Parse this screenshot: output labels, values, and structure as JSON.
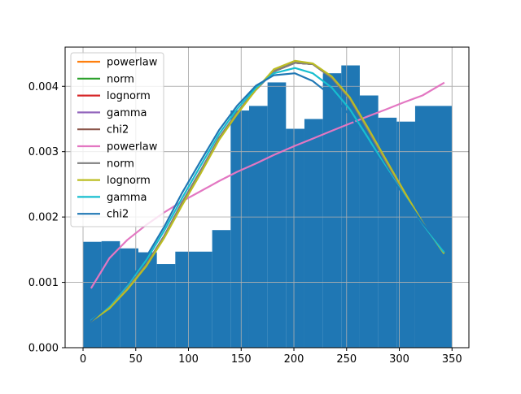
{
  "chart_data": {
    "type": "bar",
    "title": "",
    "xlabel": "",
    "ylabel": "",
    "xlim": [
      -17,
      366
    ],
    "ylim": [
      0,
      0.0046
    ],
    "grid": true,
    "legend_position": "upper-left",
    "xticks": [
      0,
      50,
      100,
      150,
      200,
      250,
      300,
      350
    ],
    "xtick_labels": [
      "0",
      "50",
      "100",
      "150",
      "200",
      "250",
      "300",
      "350"
    ],
    "yticks": [
      0,
      0.001,
      0.002,
      0.003,
      0.004
    ],
    "ytick_labels": [
      "0.000",
      "0.001",
      "0.002",
      "0.003",
      "0.004"
    ],
    "histogram": {
      "color": "#1f77b4",
      "bins": [
        {
          "x0": 0,
          "x1": 17.5,
          "height": 0.00162
        },
        {
          "x0": 17.5,
          "x1": 35,
          "height": 0.00163
        },
        {
          "x0": 35,
          "x1": 52.5,
          "height": 0.00152
        },
        {
          "x0": 52.5,
          "x1": 70,
          "height": 0.00146
        },
        {
          "x0": 70,
          "x1": 87.5,
          "height": 0.00128
        },
        {
          "x0": 87.5,
          "x1": 105,
          "height": 0.00147
        },
        {
          "x0": 105,
          "x1": 122.5,
          "height": 0.00147
        },
        {
          "x0": 122.5,
          "x1": 140,
          "height": 0.0018
        },
        {
          "x0": 140,
          "x1": 157.5,
          "height": 0.00363
        },
        {
          "x0": 157.5,
          "x1": 175,
          "height": 0.0037
        },
        {
          "x0": 175,
          "x1": 192.5,
          "height": 0.00406
        },
        {
          "x0": 192.5,
          "x1": 210,
          "height": 0.00335
        },
        {
          "x0": 210,
          "x1": 227.5,
          "height": 0.0035
        },
        {
          "x0": 227.5,
          "x1": 245,
          "height": 0.0042
        },
        {
          "x0": 245,
          "x1": 262.5,
          "height": 0.00432
        },
        {
          "x0": 262.5,
          "x1": 280,
          "height": 0.00386
        },
        {
          "x0": 280,
          "x1": 297.5,
          "height": 0.00352
        },
        {
          "x0": 297.5,
          "x1": 315,
          "height": 0.00346
        },
        {
          "x0": 315,
          "x1": 350,
          "height": 0.0037
        }
      ]
    },
    "series": [
      {
        "name": "powerlaw",
        "color": "#ff7f0e",
        "x": [
          8,
          25,
          42,
          60,
          77,
          94,
          112,
          129,
          146,
          164,
          181,
          201,
          218,
          236,
          253,
          270,
          288,
          305,
          322,
          342
        ],
        "y": [
          0.00041,
          0.00061,
          0.00091,
          0.00127,
          0.00171,
          0.00222,
          0.00272,
          0.00321,
          0.00359,
          0.00395,
          0.00423,
          0.00436,
          0.00434,
          0.00413,
          0.00381,
          0.00334,
          0.00283,
          0.00237,
          0.00191,
          0.00146
        ]
      },
      {
        "name": "norm",
        "color": "#2ca02c",
        "x": [
          8,
          25,
          42,
          60,
          77,
          94,
          112,
          129,
          146,
          164,
          181,
          201,
          218,
          236,
          253,
          270,
          288,
          305,
          322,
          342
        ],
        "y": [
          0.00041,
          0.00061,
          0.00091,
          0.00127,
          0.00171,
          0.00222,
          0.00272,
          0.00321,
          0.00359,
          0.00395,
          0.00423,
          0.00436,
          0.00434,
          0.00413,
          0.00381,
          0.00334,
          0.00283,
          0.00237,
          0.00191,
          0.00146
        ]
      },
      {
        "name": "lognorm",
        "color": "#d62728",
        "x": [
          8,
          25,
          42,
          60,
          77,
          94,
          112,
          129,
          146,
          164,
          181,
          201,
          218,
          236,
          253,
          270,
          288,
          305,
          322,
          342
        ],
        "y": [
          0.00041,
          0.00061,
          0.00091,
          0.00127,
          0.00171,
          0.00222,
          0.00272,
          0.00321,
          0.00359,
          0.00395,
          0.00423,
          0.00436,
          0.00434,
          0.00413,
          0.00381,
          0.00334,
          0.00283,
          0.00237,
          0.00191,
          0.00146
        ]
      },
      {
        "name": "gamma",
        "color": "#9467bd",
        "x": [
          8,
          25,
          42,
          60,
          77,
          94,
          112,
          129,
          146,
          164,
          181,
          201,
          218,
          236,
          253,
          270,
          288,
          305,
          322,
          342
        ],
        "y": [
          0.00041,
          0.00061,
          0.00091,
          0.00127,
          0.00171,
          0.00222,
          0.00272,
          0.00321,
          0.00359,
          0.00395,
          0.00423,
          0.00436,
          0.00434,
          0.00413,
          0.00381,
          0.00334,
          0.00283,
          0.00237,
          0.00191,
          0.00146
        ]
      },
      {
        "name": "chi2",
        "color": "#8c564b",
        "x": [
          8,
          25,
          42,
          60,
          77,
          94,
          112,
          129,
          146,
          164,
          181,
          201,
          218,
          236,
          253,
          270,
          288,
          305,
          322,
          342
        ],
        "y": [
          0.00041,
          0.00061,
          0.00091,
          0.00127,
          0.00171,
          0.00222,
          0.00272,
          0.00321,
          0.00359,
          0.00395,
          0.00423,
          0.00436,
          0.00434,
          0.00413,
          0.00381,
          0.00334,
          0.00283,
          0.00237,
          0.00191,
          0.00146
        ]
      },
      {
        "name": "powerlaw",
        "color": "#e377c2",
        "x": [
          8,
          25,
          42,
          60,
          77,
          94,
          112,
          129,
          146,
          164,
          181,
          201,
          218,
          236,
          253,
          270,
          288,
          305,
          322,
          342
        ],
        "y": [
          0.00092,
          0.00137,
          0.00165,
          0.00188,
          0.00207,
          0.00224,
          0.0024,
          0.00255,
          0.00269,
          0.00282,
          0.00295,
          0.00309,
          0.0032,
          0.00332,
          0.00343,
          0.00354,
          0.00365,
          0.00376,
          0.00386,
          0.00405
        ]
      },
      {
        "name": "norm",
        "color": "#7f7f7f",
        "x": [
          8,
          25,
          42,
          60,
          77,
          94,
          112,
          129,
          146,
          164,
          181,
          201,
          218,
          236,
          253,
          270,
          288,
          305,
          322,
          342
        ],
        "y": [
          0.00041,
          0.00061,
          0.00091,
          0.00127,
          0.00171,
          0.00222,
          0.00272,
          0.00321,
          0.00359,
          0.00395,
          0.00423,
          0.00436,
          0.00434,
          0.00413,
          0.00381,
          0.00334,
          0.00283,
          0.00237,
          0.00191,
          0.00146
        ]
      },
      {
        "name": "lognorm",
        "color": "#bcbd22",
        "x": [
          8,
          25,
          42,
          60,
          77,
          94,
          112,
          129,
          146,
          164,
          181,
          201,
          218,
          236,
          253,
          270,
          288,
          305,
          322,
          342
        ],
        "y": [
          0.00041,
          0.0006,
          0.00089,
          0.00125,
          0.00168,
          0.00218,
          0.00268,
          0.00318,
          0.00357,
          0.00395,
          0.00426,
          0.00439,
          0.00435,
          0.00415,
          0.00383,
          0.00337,
          0.00286,
          0.00238,
          0.00192,
          0.00145
        ]
      },
      {
        "name": "gamma",
        "color": "#17becf",
        "x": [
          8,
          25,
          42,
          60,
          77,
          94,
          112,
          129,
          146,
          164,
          181,
          201,
          218,
          236,
          253,
          270,
          288,
          305,
          322,
          342
        ],
        "y": [
          0.00042,
          0.00064,
          0.00095,
          0.00134,
          0.00179,
          0.00229,
          0.0028,
          0.00327,
          0.00365,
          0.00398,
          0.0042,
          0.00428,
          0.0042,
          0.00398,
          0.00365,
          0.00322,
          0.00275,
          0.00232,
          0.0019,
          0.00147
        ]
      },
      {
        "name": "chi2",
        "color": "#1f77b4",
        "x": [
          8,
          25,
          42,
          60,
          77,
          94,
          112,
          129,
          146,
          164,
          181,
          201,
          218,
          236,
          253,
          270,
          288,
          305,
          322,
          342
        ],
        "y": [
          0.00041,
          0.00066,
          0.00098,
          0.00139,
          0.00185,
          0.00237,
          0.00287,
          0.00333,
          0.0037,
          0.00401,
          0.00417,
          0.0042,
          0.00408,
          0.00385,
          0.00356,
          0.00316,
          0.00272,
          0.00231,
          0.00191,
          0.00151
        ]
      }
    ]
  }
}
